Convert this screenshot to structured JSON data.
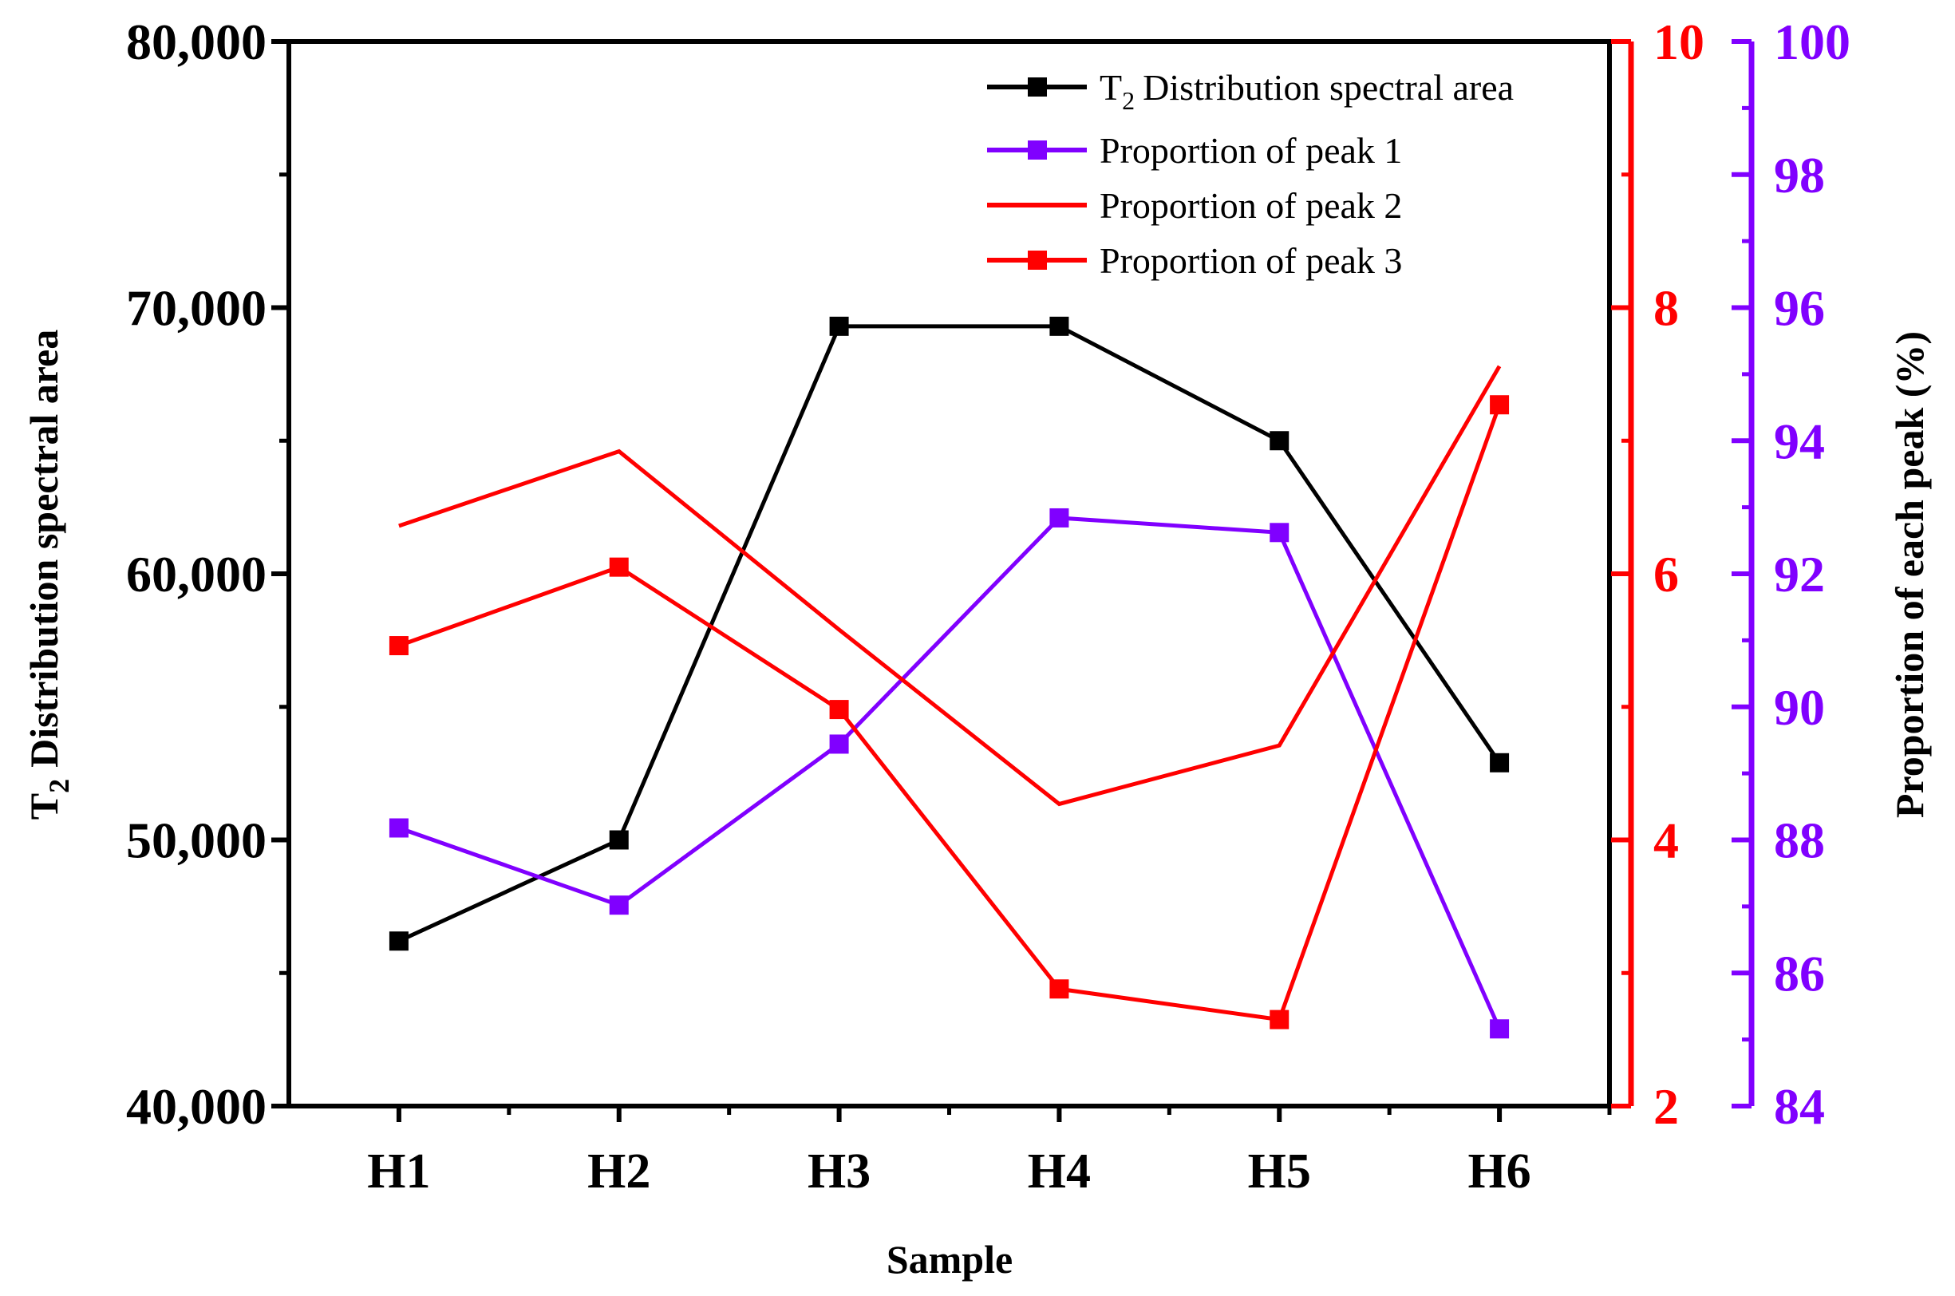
{
  "chart_data": {
    "type": "line",
    "xlabel": "Sample",
    "categories": [
      "H1",
      "H2",
      "H3",
      "H4",
      "H5",
      "H6"
    ],
    "axes": {
      "left": {
        "label_main": "T",
        "label_sub": "2",
        "label_rest": "Distribution spectral area",
        "range": [
          40000,
          80000
        ],
        "ticks": [
          "40,000",
          "50,000",
          "60,000",
          "70,000",
          "80,000"
        ],
        "tick_values": [
          40000,
          50000,
          60000,
          70000,
          80000
        ],
        "color": "#000000"
      },
      "right1": {
        "range": [
          2,
          10
        ],
        "ticks": [
          "2",
          "4",
          "6",
          "8",
          "10"
        ],
        "tick_values": [
          2,
          4,
          6,
          8,
          10
        ],
        "color": "#ff0000"
      },
      "right2": {
        "label": "Proportion of each peak (%)",
        "range": [
          84,
          100
        ],
        "ticks": [
          "84",
          "86",
          "88",
          "90",
          "92",
          "94",
          "96",
          "98",
          "100"
        ],
        "tick_values": [
          84,
          86,
          88,
          90,
          92,
          94,
          96,
          98,
          100
        ],
        "color": "#8000ff"
      }
    },
    "series": [
      {
        "name": "T2 Distribution spectral area",
        "legend_main": "T",
        "legend_sub": "2",
        "legend_rest": "Distribution spectral area",
        "axis": "left",
        "color": "#000000",
        "marker": "square",
        "values": [
          46200,
          50000,
          69300,
          69300,
          65000,
          52900
        ]
      },
      {
        "name": "Proportion of peak 1",
        "axis": "right2",
        "color": "#8000ff",
        "marker": "square",
        "values": [
          88.18,
          87.02,
          89.44,
          92.84,
          92.62,
          85.16
        ]
      },
      {
        "name": "Proportion of peak 2",
        "axis": "right1",
        "color": "#ff0000",
        "marker": "none",
        "values": [
          6.36,
          6.92,
          5.58,
          4.27,
          4.71,
          7.56
        ]
      },
      {
        "name": "Proportion of peak 3",
        "axis": "right1",
        "color": "#ff0000",
        "marker": "square",
        "values": [
          5.46,
          6.05,
          4.98,
          2.88,
          2.65,
          7.27
        ]
      }
    ],
    "legend_position": "top-right"
  }
}
